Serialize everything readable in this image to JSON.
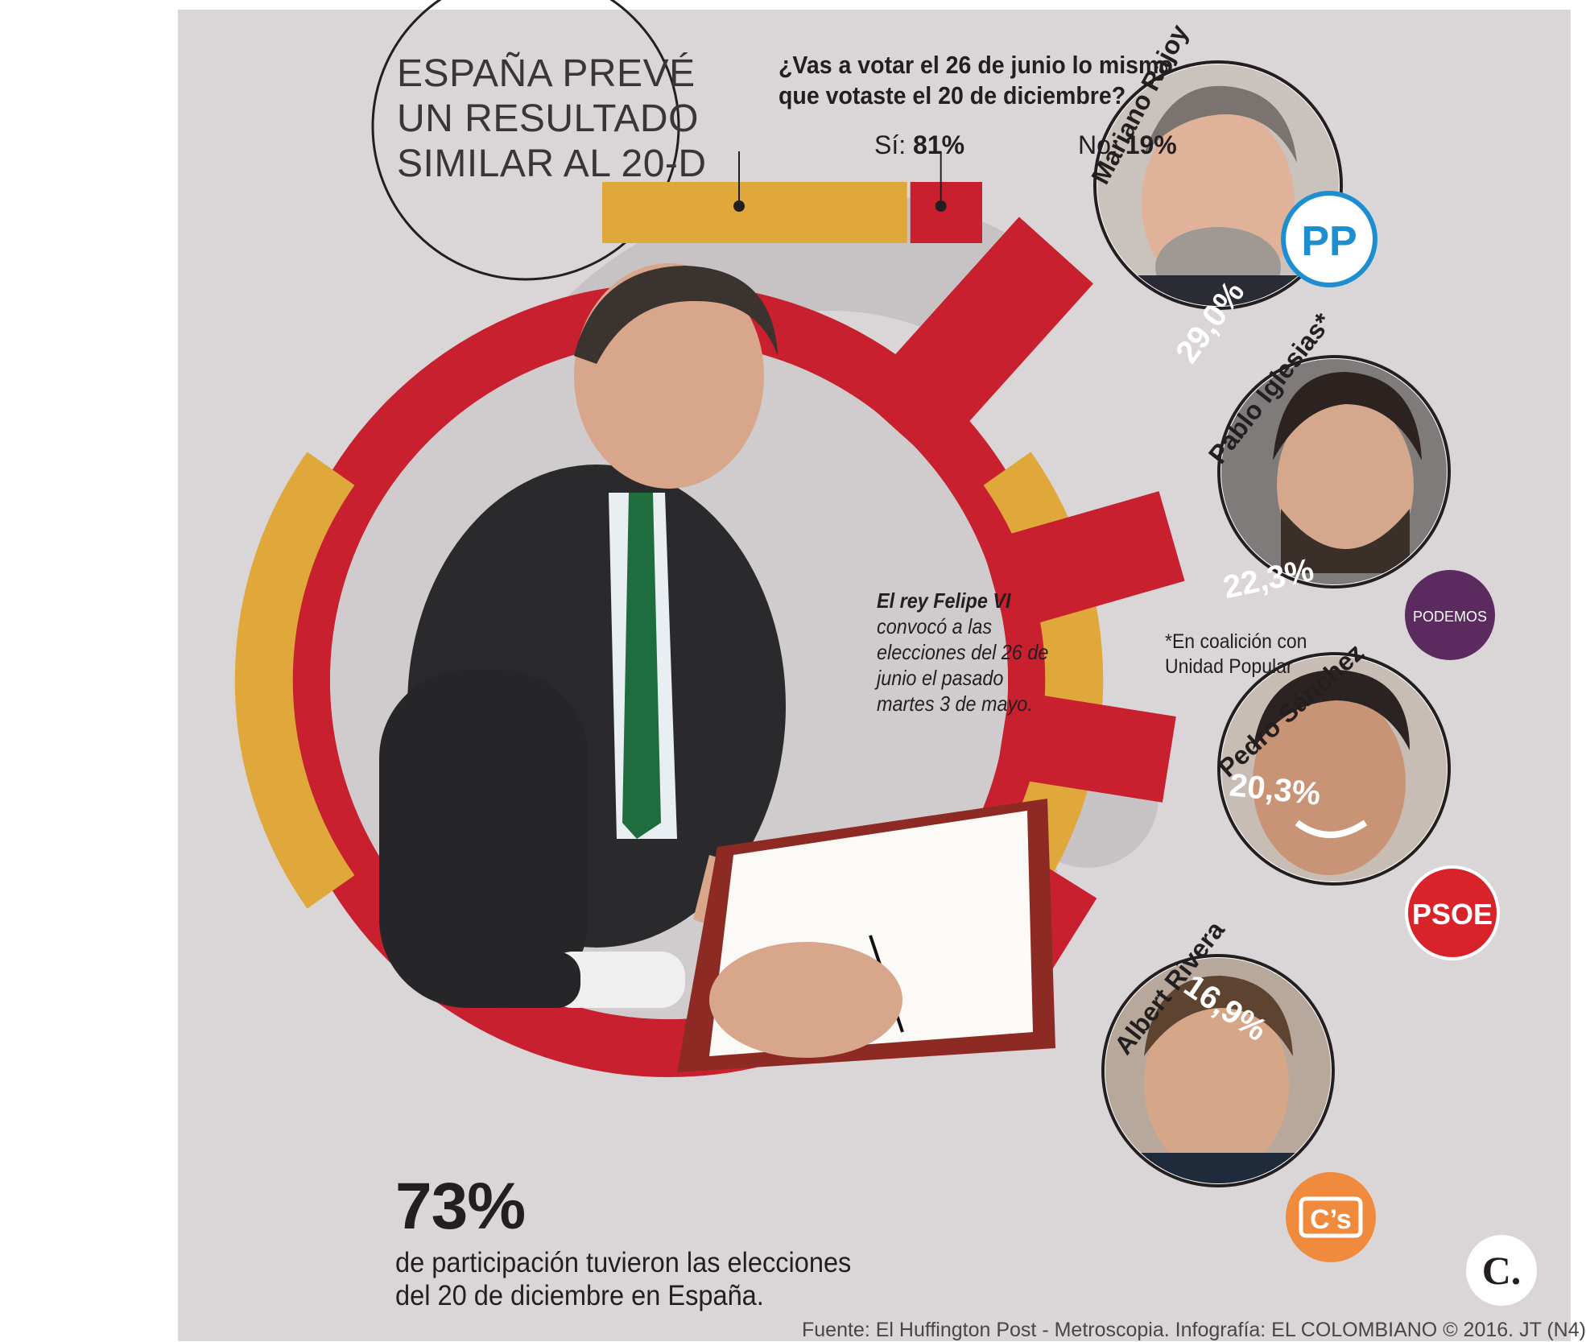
{
  "title": {
    "lines": [
      "ESPAÑA PREVÉ",
      "UN RESULTADO",
      "SIMILAR AL 20-D"
    ]
  },
  "question": {
    "lines": [
      "¿Vas a votar el 26 de junio lo mismo",
      "que votaste el 20 de diciembre?"
    ],
    "yes_label": "Sí:",
    "yes_value": "81%",
    "no_label": "No:",
    "no_value": "19%"
  },
  "caption": {
    "lines": [
      "El rey Felipe VI",
      "convocó a las",
      "elecciones del 26 de",
      "junio el pasado",
      "martes 3 de mayo."
    ]
  },
  "note": {
    "lines": [
      "*En coalición con",
      "Unidad Popular"
    ]
  },
  "participation": {
    "value": "73%",
    "lines": [
      "de participación tuvieron las elecciones",
      "del 20 de diciembre en España."
    ]
  },
  "source": "Fuente: El Huffington Post - Metroscopia. Infografía: EL COLOMBIANO © 2016. JT (N4)",
  "parties": [
    {
      "candidate": "Mariano Rajoy",
      "logo": "PP",
      "share": "29,0%"
    },
    {
      "candidate": "Pablo Iglesias*",
      "logo": "PODEMOS",
      "share": "22,3%"
    },
    {
      "candidate": "Pedro Sánchez",
      "logo": "PSOE",
      "share": "20,3%"
    },
    {
      "candidate": "Albert Rivera",
      "logo": "C’s",
      "share": "16,9%"
    }
  ],
  "brand_mark": "C.",
  "colors": {
    "background": "#dad5d7",
    "red": "#c8202f",
    "gold": "#e0a83b",
    "podemos": "#5b2a5e",
    "pp_blue": "#1d8fd1",
    "cs_orange": "#f08a3c"
  },
  "chart_data": [
    {
      "type": "bar",
      "title": "¿Vas a votar el 26 de junio lo mismo que votaste el 20 de diciembre?",
      "categories": [
        "Sí",
        "No"
      ],
      "values": [
        81,
        19
      ]
    },
    {
      "type": "bar",
      "categories": [
        "Mariano Rajoy",
        "Pablo Iglesias*",
        "Pedro Sánchez",
        "Albert Rivera"
      ],
      "values": [
        29.0,
        22.3,
        20.3,
        16.9
      ]
    }
  ]
}
